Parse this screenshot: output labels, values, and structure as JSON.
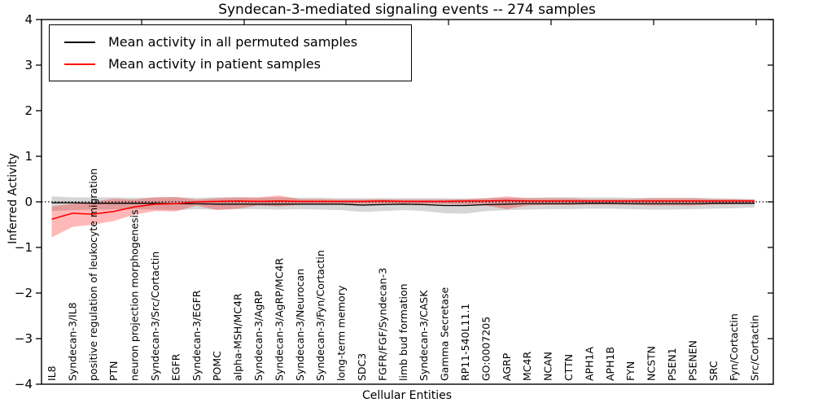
{
  "chart_data": {
    "type": "line",
    "title": "Syndecan-3-mediated signaling events -- 274 samples",
    "xlabel": "Cellular Entities",
    "ylabel": "Inferred Activity",
    "ylim": [
      -4,
      4
    ],
    "yticks": [
      "4",
      "3",
      "2",
      "1",
      "0",
      "−1",
      "−2",
      "−3",
      "−4"
    ],
    "ytick_values": [
      4,
      3,
      2,
      1,
      0,
      -1,
      -2,
      -3,
      -4
    ],
    "grid": false,
    "legend_position": "upper left",
    "zero_reference_line": 0,
    "categories": [
      "IL8",
      "Syndecan-3/IL8",
      "positive regulation of leukocyte migration",
      "PTN",
      "neuron projection morphogenesis",
      "Syndecan-3/Src/Cortactin",
      "EGFR",
      "Syndecan-3/EGFR",
      "POMC",
      "alpha-MSH/MC4R",
      "Syndecan-3/AgRP",
      "Syndecan-3/AgRP/MC4R",
      "Syndecan-3/Neurocan",
      "Syndecan-3/Fyn/Cortactin",
      "long-term memory",
      "SDC3",
      "FGFR/FGF/Syndecan-3",
      "limb bud formation",
      "Syndecan-3/CASK",
      "Gamma Secretase",
      "RP11-540L11.1",
      "GO:0007205",
      "AGRP",
      "MC4R",
      "NCAN",
      "CTTN",
      "APH1A",
      "APH1B",
      "FYN",
      "NCSTN",
      "PSEN1",
      "PSENEN",
      "SRC",
      "Fyn/Cortactin",
      "Src/Cortactin"
    ],
    "series": [
      {
        "name": "Mean activity in all permuted samples",
        "color": "#000000",
        "band_color": "rgba(0,0,0,0.16)",
        "values": [
          -0.02,
          -0.02,
          -0.03,
          -0.03,
          -0.03,
          -0.03,
          -0.04,
          -0.04,
          -0.05,
          -0.05,
          -0.05,
          -0.05,
          -0.05,
          -0.05,
          -0.05,
          -0.07,
          -0.06,
          -0.05,
          -0.06,
          -0.08,
          -0.08,
          -0.06,
          -0.05,
          -0.04,
          -0.04,
          -0.04,
          -0.03,
          -0.03,
          -0.04,
          -0.04,
          -0.04,
          -0.04,
          -0.03,
          -0.03,
          -0.03
        ],
        "band_upper": [
          0.12,
          0.1,
          0.1,
          0.1,
          0.09,
          0.1,
          0.1,
          0.09,
          0.1,
          0.1,
          0.09,
          0.1,
          0.09,
          0.09,
          0.08,
          0.08,
          0.08,
          0.08,
          0.08,
          0.08,
          0.07,
          0.08,
          0.09,
          0.09,
          0.1,
          0.1,
          0.1,
          0.1,
          0.09,
          0.09,
          0.09,
          0.09,
          0.08,
          0.07,
          0.06
        ],
        "band_lower": [
          -0.2,
          -0.18,
          -0.17,
          -0.16,
          -0.16,
          -0.17,
          -0.18,
          -0.16,
          -0.17,
          -0.16,
          -0.16,
          -0.17,
          -0.16,
          -0.17,
          -0.18,
          -0.22,
          -0.2,
          -0.18,
          -0.2,
          -0.25,
          -0.26,
          -0.2,
          -0.18,
          -0.17,
          -0.16,
          -0.16,
          -0.15,
          -0.15,
          -0.16,
          -0.17,
          -0.17,
          -0.16,
          -0.15,
          -0.14,
          -0.12
        ]
      },
      {
        "name": "Mean activity in patient samples",
        "color": "#ff0000",
        "band_color": "rgba(255,0,0,0.28)",
        "values": [
          -0.38,
          -0.25,
          -0.27,
          -0.21,
          -0.11,
          -0.05,
          -0.04,
          0.0,
          0.01,
          0.02,
          0.01,
          0.02,
          0.01,
          0.01,
          0.01,
          0.01,
          0.02,
          0.01,
          0.01,
          0.01,
          0.02,
          0.02,
          0.03,
          0.02,
          0.02,
          0.02,
          0.02,
          0.02,
          0.02,
          0.02,
          0.02,
          0.02,
          0.02,
          0.02,
          0.02
        ],
        "band_upper": [
          -0.1,
          -0.04,
          0.0,
          0.07,
          0.05,
          0.1,
          0.11,
          0.05,
          0.08,
          0.1,
          0.1,
          0.14,
          0.06,
          0.06,
          0.05,
          0.05,
          0.06,
          0.05,
          0.05,
          0.05,
          0.06,
          0.08,
          0.12,
          0.08,
          0.08,
          0.08,
          0.06,
          0.06,
          0.06,
          0.08,
          0.08,
          0.08,
          0.06,
          0.06,
          0.05
        ],
        "band_lower": [
          -0.78,
          -0.55,
          -0.5,
          -0.42,
          -0.28,
          -0.2,
          -0.21,
          -0.08,
          -0.18,
          -0.15,
          -0.08,
          -0.1,
          -0.06,
          -0.06,
          -0.05,
          -0.05,
          -0.06,
          -0.05,
          -0.05,
          -0.05,
          -0.06,
          -0.08,
          -0.16,
          -0.08,
          -0.07,
          -0.07,
          -0.06,
          -0.06,
          -0.06,
          -0.08,
          -0.08,
          -0.08,
          -0.06,
          -0.05,
          -0.04
        ]
      }
    ]
  }
}
